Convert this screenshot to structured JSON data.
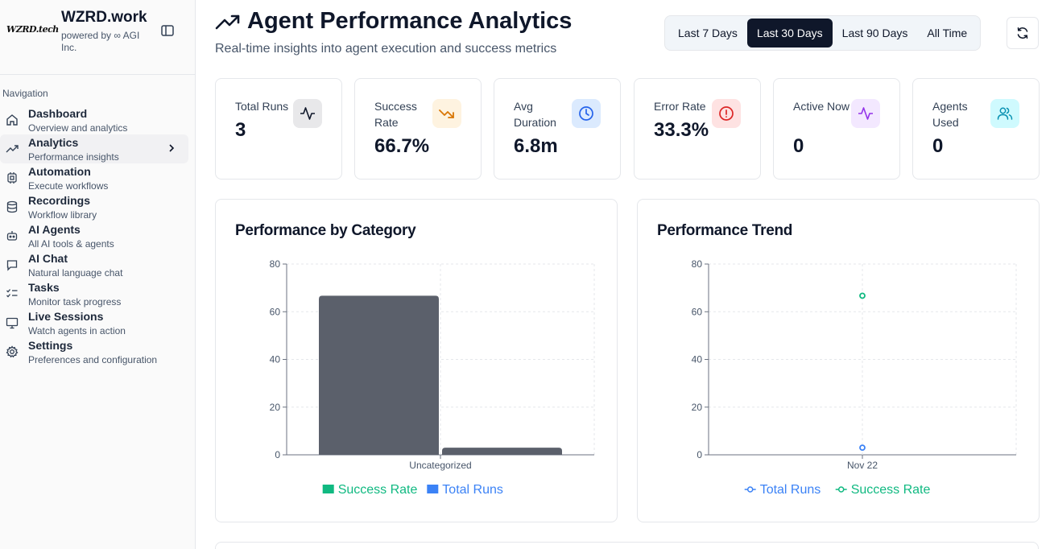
{
  "brand": {
    "logo_text": "WZRD.tech",
    "title": "WZRD.work",
    "subtitle": "powered by ∞ AGI Inc."
  },
  "nav": {
    "title": "Navigation",
    "items": [
      {
        "label": "Dashboard",
        "desc": "Overview and analytics",
        "icon": "home-icon"
      },
      {
        "label": "Analytics",
        "desc": "Performance insights",
        "icon": "trending-up-icon"
      },
      {
        "label": "Automation",
        "desc": "Execute workflows",
        "icon": "cpu-icon"
      },
      {
        "label": "Recordings",
        "desc": "Workflow library",
        "icon": "database-icon"
      },
      {
        "label": "AI Agents",
        "desc": "All AI tools & agents",
        "icon": "bot-icon"
      },
      {
        "label": "AI Chat",
        "desc": "Natural language chat",
        "icon": "chat-icon"
      },
      {
        "label": "Tasks",
        "desc": "Monitor task progress",
        "icon": "list-checks-icon"
      },
      {
        "label": "Live Sessions",
        "desc": "Watch agents in action",
        "icon": "monitor-icon"
      },
      {
        "label": "Settings",
        "desc": "Preferences and configuration",
        "icon": "gear-icon"
      }
    ]
  },
  "header": {
    "title": "Agent Performance Analytics",
    "subtitle": "Real-time insights into agent execution and success metrics",
    "ranges": [
      "Last 7 Days",
      "Last 30 Days",
      "Last 90 Days",
      "All Time"
    ],
    "selected_range": "Last 30 Days"
  },
  "stats": [
    {
      "label": "Total Runs",
      "value": "3",
      "icon": "activity-icon",
      "color": "#0f172a",
      "bg": "#f1f1f3"
    },
    {
      "label": "Success Rate",
      "value": "66.7%",
      "icon": "trending-down-icon",
      "color": "#d97706",
      "bg": "#fef3c7"
    },
    {
      "label": "Avg Duration",
      "value": "6.8m",
      "icon": "clock-icon",
      "color": "#2563eb",
      "bg": "#dbeafe"
    },
    {
      "label": "Error Rate",
      "value": "33.3%",
      "icon": "alert-circle-icon",
      "color": "#dc2626",
      "bg": "#fee2e2"
    },
    {
      "label": "Active Now",
      "value": "0",
      "icon": "pulse-icon",
      "color": "#9333ea",
      "bg": "#f3e8ff"
    },
    {
      "label": "Agents Used",
      "value": "0",
      "icon": "users-icon",
      "color": "#0891b2",
      "bg": "#cffafe"
    }
  ],
  "colors": {
    "success": "#10b981",
    "runs": "#3b82f6",
    "bar_fill": "#5b606b"
  },
  "chart_data": [
    {
      "type": "bar",
      "title": "Performance by Category",
      "categories": [
        "Uncategorized"
      ],
      "series": [
        {
          "name": "Success Rate",
          "values": [
            66.7
          ]
        },
        {
          "name": "Total Runs",
          "values": [
            3
          ]
        }
      ],
      "yticks": [
        0,
        20,
        40,
        60,
        80
      ],
      "ylim": [
        0,
        80
      ],
      "legend_position": "bottom",
      "grid": true
    },
    {
      "type": "line",
      "title": "Performance Trend",
      "x": [
        "Nov 22"
      ],
      "series": [
        {
          "name": "Total Runs",
          "values": [
            3
          ]
        },
        {
          "name": "Success Rate",
          "values": [
            66.7
          ]
        }
      ],
      "yticks": [
        0,
        20,
        40,
        60,
        80
      ],
      "ylim": [
        0,
        80
      ],
      "legend_position": "bottom",
      "grid": true
    }
  ]
}
